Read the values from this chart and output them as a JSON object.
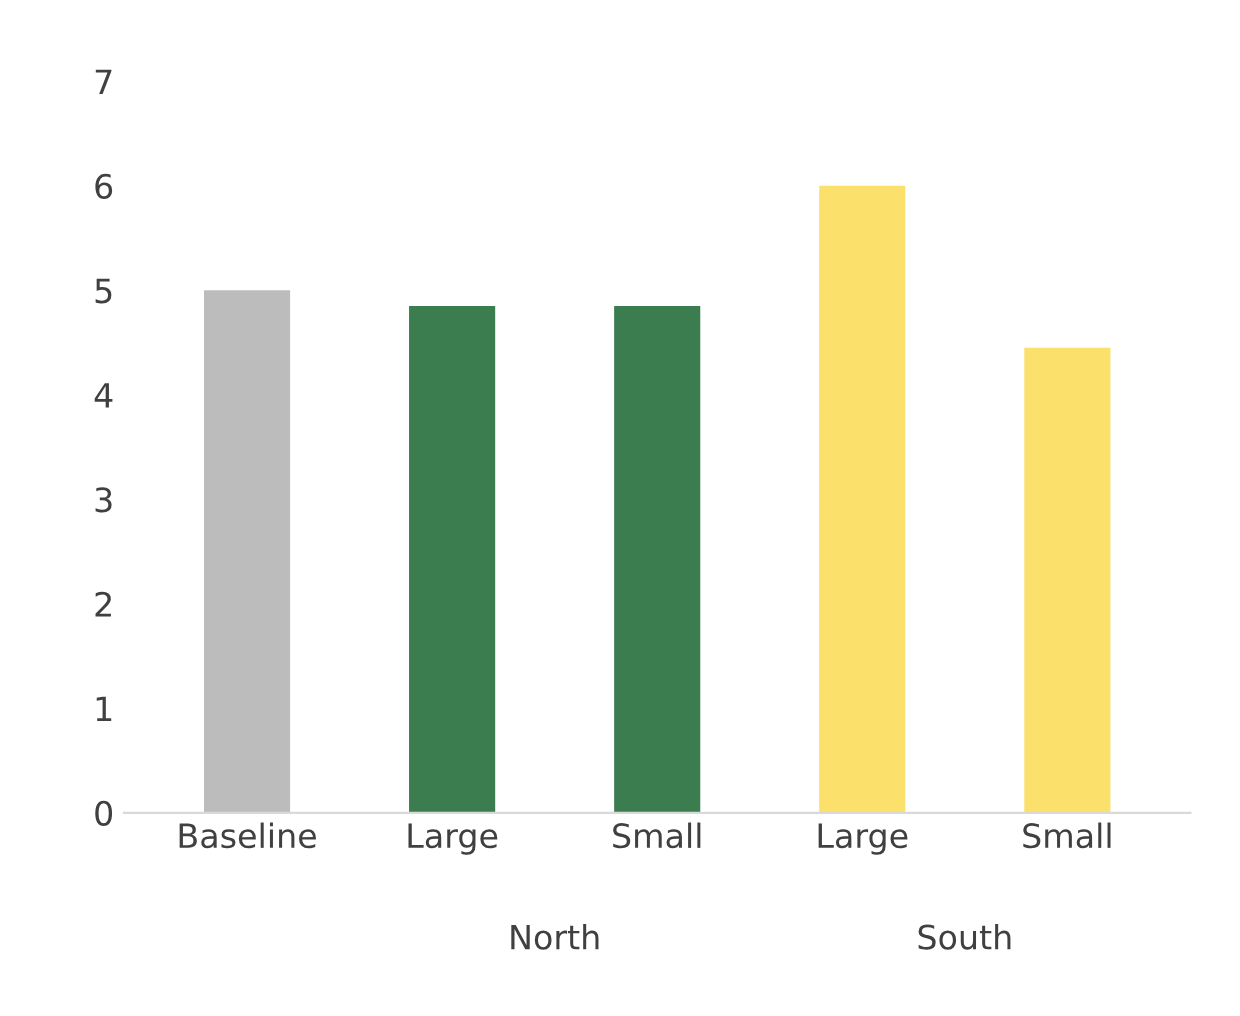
{
  "chart_data": {
    "type": "bar",
    "categories": [
      "Baseline",
      "Large",
      "Small",
      "Large",
      "Small"
    ],
    "values": [
      5,
      4.85,
      4.85,
      6,
      4.45
    ],
    "colors": [
      "#bcbcbc",
      "#3b7d4f",
      "#3b7d4f",
      "#fbe06b",
      "#fbe06b"
    ],
    "ylim": [
      0,
      7
    ],
    "yticks": [
      0,
      1,
      2,
      3,
      4,
      5,
      6,
      7
    ],
    "annotations": [
      "North",
      "South"
    ],
    "grid": false,
    "legend": false
  }
}
